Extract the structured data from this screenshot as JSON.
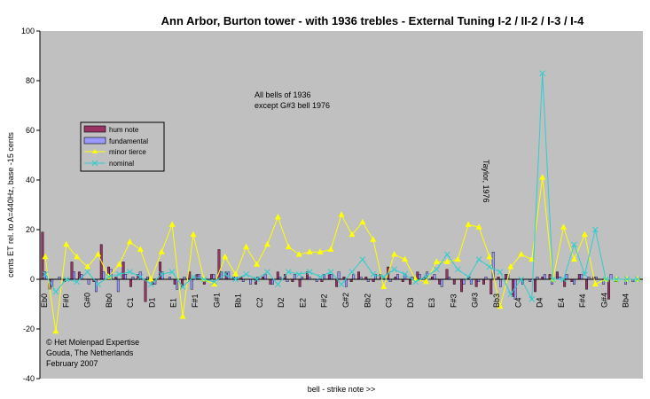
{
  "chart_data": {
    "type": "bar+line",
    "title": "Ann Arbor, Burton tower - with 1936 trebles - External Tuning I-2 / II-2 / I-3 / I-4",
    "xlabel": "bell - strike note >>",
    "ylabel": "cents ET rel. to A=440Hz, base -15 cents",
    "ylim": [
      -40,
      100
    ],
    "yticks": [
      "-40",
      "-20",
      "0",
      "20",
      "40",
      "60",
      "80",
      "100"
    ],
    "grid": false,
    "plot_background": "#c0c0c0",
    "legend_position": "left-middle",
    "x_tick_labels": [
      "Eb0",
      "F#0",
      "G#0",
      "Bb0",
      "C1",
      "D1",
      "E1",
      "F#1",
      "G#1",
      "Bb1",
      "C2",
      "D2",
      "E2",
      "F#2",
      "G#2",
      "Bb2",
      "C3",
      "D3",
      "E3",
      "F#3",
      "G#3",
      "Bb3",
      "C4",
      "D4",
      "E4",
      "F#4",
      "G#4",
      "Bb4"
    ],
    "annotations": {
      "note": [
        "All bells of 1936",
        "except G#3 bell 1976"
      ],
      "marker": "Taylor, 1976",
      "copyright": [
        "© Het Molenpad Expertise",
        "Gouda, The Netherlands",
        "February 2007"
      ]
    },
    "series": [
      {
        "name": "hum note",
        "kind": "bar",
        "color": "#993366",
        "values": [
          19,
          -4,
          0,
          -1,
          7,
          3,
          0,
          -1,
          14,
          5,
          1,
          7,
          -3,
          2,
          -9,
          -2,
          7,
          0,
          -2,
          -3,
          3,
          2,
          -2,
          2,
          12,
          3,
          1,
          1,
          0,
          -2,
          1,
          -2,
          3,
          2,
          -1,
          -3,
          3,
          0,
          -1,
          2,
          -3,
          1,
          -1,
          3,
          1,
          -1,
          2,
          5,
          1,
          -1,
          -2,
          3,
          1,
          1,
          -2,
          4,
          -2,
          -5,
          1,
          -3,
          -2,
          -6,
          1,
          2,
          -7,
          0,
          0,
          -5,
          1,
          2,
          3,
          -3,
          -1,
          2,
          -4,
          1,
          0,
          -8,
          -1,
          0,
          0,
          0
        ]
      },
      {
        "name": "fundamental",
        "kind": "bar",
        "color": "#9999ff",
        "values": [
          3,
          -3,
          1,
          0,
          3,
          2,
          -2,
          -5,
          3,
          4,
          -5,
          2,
          1,
          3,
          1,
          -2,
          3,
          1,
          -4,
          1,
          -4,
          2,
          0,
          2,
          3,
          3,
          2,
          -1,
          -2,
          1,
          2,
          -2,
          1,
          -1,
          2,
          1,
          1,
          -1,
          2,
          2,
          3,
          -3,
          2,
          1,
          -1,
          2,
          1,
          -1,
          2,
          2,
          1,
          2,
          3,
          2,
          -3,
          1,
          0,
          -2,
          -2,
          -1,
          1,
          11,
          -3,
          2,
          -8,
          -2,
          -1,
          1,
          2,
          -2,
          1,
          2,
          -2,
          2,
          1,
          1,
          -2,
          2,
          0,
          -2,
          -1,
          0
        ]
      },
      {
        "name": "minor tierce",
        "kind": "line",
        "color": "#ffff00",
        "values": [
          9,
          -21,
          14,
          9,
          5,
          10,
          1,
          6,
          15,
          12,
          0,
          11,
          22,
          -15,
          18,
          0,
          -2,
          9,
          2,
          13,
          6,
          14,
          25,
          13,
          10,
          11,
          11,
          12,
          26,
          18,
          23,
          16,
          -3,
          10,
          8,
          0,
          -1,
          7,
          7,
          8,
          22,
          21,
          9,
          -11,
          5,
          10,
          8,
          41,
          0,
          21,
          8,
          18,
          -2,
          0,
          0,
          0,
          0
        ]
      },
      {
        "name": "nominal",
        "kind": "line",
        "color": "#33cccc",
        "values": [
          2,
          -5,
          0,
          -1,
          3,
          -2,
          1,
          2,
          3,
          1,
          -2,
          2,
          3,
          -3,
          1,
          0,
          -1,
          2,
          0,
          2,
          0,
          3,
          -2,
          3,
          2,
          3,
          1,
          3,
          -2,
          3,
          8,
          2,
          1,
          4,
          2,
          -1,
          1,
          4,
          10,
          4,
          1,
          8,
          5,
          3,
          -6,
          0,
          -8,
          83,
          0,
          0,
          14,
          2,
          20,
          0,
          0,
          0,
          0
        ]
      }
    ]
  }
}
